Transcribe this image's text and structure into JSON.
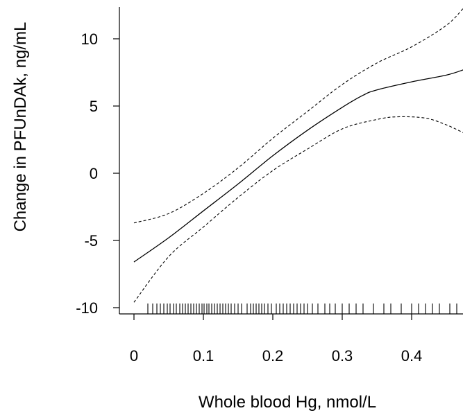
{
  "chart_data": {
    "type": "line",
    "xlabel": "Whole blood Hg, nmol/L",
    "ylabel": "Change in PFUnDAk, ng/mL",
    "xlim": [
      -0.02,
      0.475
    ],
    "ylim": [
      -10.3,
      12.3
    ],
    "x_ticks": [
      {
        "value": 0,
        "label": "0"
      },
      {
        "value": 0.1,
        "label": "0.1"
      },
      {
        "value": 0.2,
        "label": "0.2"
      },
      {
        "value": 0.3,
        "label": "0.3"
      },
      {
        "value": 0.4,
        "label": "0.4"
      }
    ],
    "y_ticks": [
      {
        "value": -10,
        "label": "-10"
      },
      {
        "value": -5,
        "label": "-5"
      },
      {
        "value": 0,
        "label": "0"
      },
      {
        "value": 5,
        "label": "5"
      },
      {
        "value": 10,
        "label": "10"
      }
    ],
    "grid": false,
    "legend": "none",
    "series": [
      {
        "style": "solid",
        "x": [
          0,
          0.05,
          0.1,
          0.15,
          0.2,
          0.25,
          0.3,
          0.33,
          0.35,
          0.4,
          0.45,
          0.475
        ],
        "y": [
          -6.6,
          -4.8,
          -2.8,
          -0.8,
          1.3,
          3.2,
          4.9,
          5.8,
          6.2,
          6.8,
          7.3,
          7.7
        ]
      },
      {
        "style": "dashed",
        "x": [
          0,
          0.05,
          0.1,
          0.15,
          0.2,
          0.25,
          0.3,
          0.35,
          0.4,
          0.45,
          0.475
        ],
        "y": [
          -3.7,
          -3.0,
          -1.5,
          0.4,
          2.6,
          4.6,
          6.6,
          8.2,
          9.4,
          11.0,
          12.3
        ]
      },
      {
        "style": "dashed",
        "x": [
          0,
          0.05,
          0.1,
          0.15,
          0.2,
          0.25,
          0.3,
          0.35,
          0.38,
          0.42,
          0.45,
          0.475
        ],
        "y": [
          -9.6,
          -6.2,
          -4.0,
          -1.8,
          0.2,
          1.8,
          3.3,
          4.0,
          4.2,
          4.1,
          3.6,
          3.0
        ]
      }
    ],
    "rug": [
      0.02,
      0.027,
      0.033,
      0.038,
      0.043,
      0.048,
      0.052,
      0.057,
      0.061,
      0.066,
      0.07,
      0.074,
      0.078,
      0.082,
      0.086,
      0.09,
      0.094,
      0.098,
      0.101,
      0.105,
      0.108,
      0.112,
      0.116,
      0.12,
      0.124,
      0.128,
      0.132,
      0.136,
      0.14,
      0.145,
      0.15,
      0.155,
      0.163,
      0.168,
      0.172,
      0.176,
      0.18,
      0.184,
      0.188,
      0.193,
      0.198,
      0.205,
      0.21,
      0.215,
      0.22,
      0.225,
      0.23,
      0.235,
      0.24,
      0.245,
      0.25,
      0.257,
      0.265,
      0.275,
      0.282,
      0.29,
      0.3,
      0.31,
      0.32,
      0.33,
      0.345,
      0.36,
      0.37,
      0.385,
      0.4,
      0.41,
      0.42,
      0.43,
      0.44,
      0.455,
      0.465
    ]
  }
}
